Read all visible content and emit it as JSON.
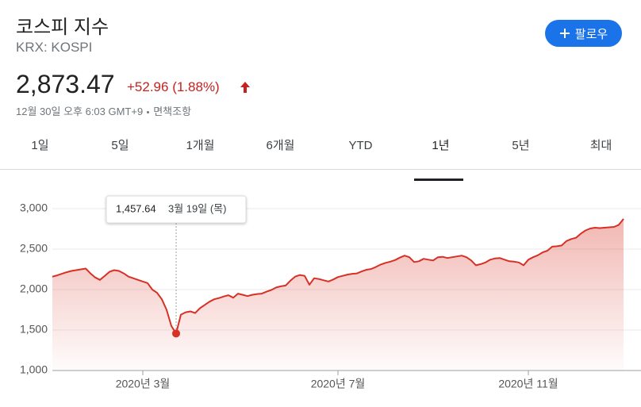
{
  "header": {
    "title": "코스피 지수",
    "ticker": "KRX: KOSPI",
    "price": "2,873.47",
    "change": "+52.96 (1.88%)",
    "timestamp": "12월 30일 오후 6:03 GMT+9",
    "disclaimer": "면책조항",
    "follow_button": "팔로우"
  },
  "tabs": [
    "1일",
    "5일",
    "1개월",
    "6개월",
    "YTD",
    "1년",
    "5년",
    "최대"
  ],
  "chart_data": {
    "type": "line",
    "color": "#d93025",
    "categories": [
      null,
      null,
      null,
      null,
      null,
      null,
      null,
      null,
      null,
      null,
      null,
      null,
      null,
      null,
      null,
      null,
      null,
      null,
      null,
      "2020년 3월",
      null,
      null,
      null,
      null,
      null,
      null,
      null,
      null,
      null,
      null,
      null,
      null,
      null,
      null,
      null,
      null,
      null,
      null,
      null,
      null,
      null,
      null,
      null,
      null,
      null,
      null,
      null,
      null,
      null,
      null,
      null,
      null,
      null,
      null,
      null,
      null,
      null,
      null,
      null,
      null,
      "2020년 7월",
      null,
      null,
      null,
      null,
      null,
      null,
      null,
      null,
      null,
      null,
      null,
      null,
      null,
      null,
      null,
      null,
      null,
      null,
      null,
      null,
      null,
      null,
      null,
      null,
      null,
      null,
      null,
      null,
      null,
      null,
      null,
      null,
      null,
      null,
      null,
      null,
      null,
      null,
      null,
      "2020년 11월",
      null,
      null,
      null,
      null,
      null,
      null,
      null,
      null,
      null,
      null,
      null,
      null,
      null,
      null,
      null,
      null,
      null,
      null,
      null,
      null
    ],
    "values": [
      2160,
      2175,
      2195,
      2215,
      2230,
      2240,
      2250,
      2260,
      2200,
      2150,
      2120,
      2170,
      2220,
      2240,
      2230,
      2200,
      2160,
      2140,
      2120,
      2100,
      2080,
      2000,
      1960,
      1880,
      1750,
      1550,
      1457.64,
      1690,
      1720,
      1730,
      1710,
      1770,
      1810,
      1850,
      1880,
      1895,
      1915,
      1930,
      1900,
      1950,
      1935,
      1920,
      1935,
      1945,
      1950,
      1975,
      1995,
      2025,
      2040,
      2050,
      2110,
      2160,
      2180,
      2170,
      2060,
      2140,
      2130,
      2115,
      2100,
      2125,
      2155,
      2170,
      2185,
      2195,
      2200,
      2225,
      2245,
      2255,
      2280,
      2310,
      2330,
      2345,
      2365,
      2395,
      2420,
      2400,
      2340,
      2350,
      2380,
      2370,
      2360,
      2400,
      2405,
      2390,
      2400,
      2410,
      2420,
      2400,
      2360,
      2300,
      2315,
      2335,
      2370,
      2385,
      2390,
      2370,
      2350,
      2345,
      2335,
      2300,
      2370,
      2400,
      2425,
      2460,
      2480,
      2530,
      2535,
      2545,
      2600,
      2625,
      2640,
      2690,
      2730,
      2755,
      2765,
      2760,
      2765,
      2770,
      2775,
      2800,
      2873.47
    ],
    "ylim": [
      1000,
      3000
    ],
    "yticks": [
      {
        "value": 1000,
        "label": "1,000"
      },
      {
        "value": 1500,
        "label": "1,500"
      },
      {
        "value": 2000,
        "label": "2,000"
      },
      {
        "value": 2500,
        "label": "2,500"
      },
      {
        "value": 3000,
        "label": "3,000"
      }
    ],
    "grid": true,
    "tooltip": {
      "value": 1457.64,
      "label": "1,457.64",
      "date": "3월 19일 (목)"
    }
  }
}
